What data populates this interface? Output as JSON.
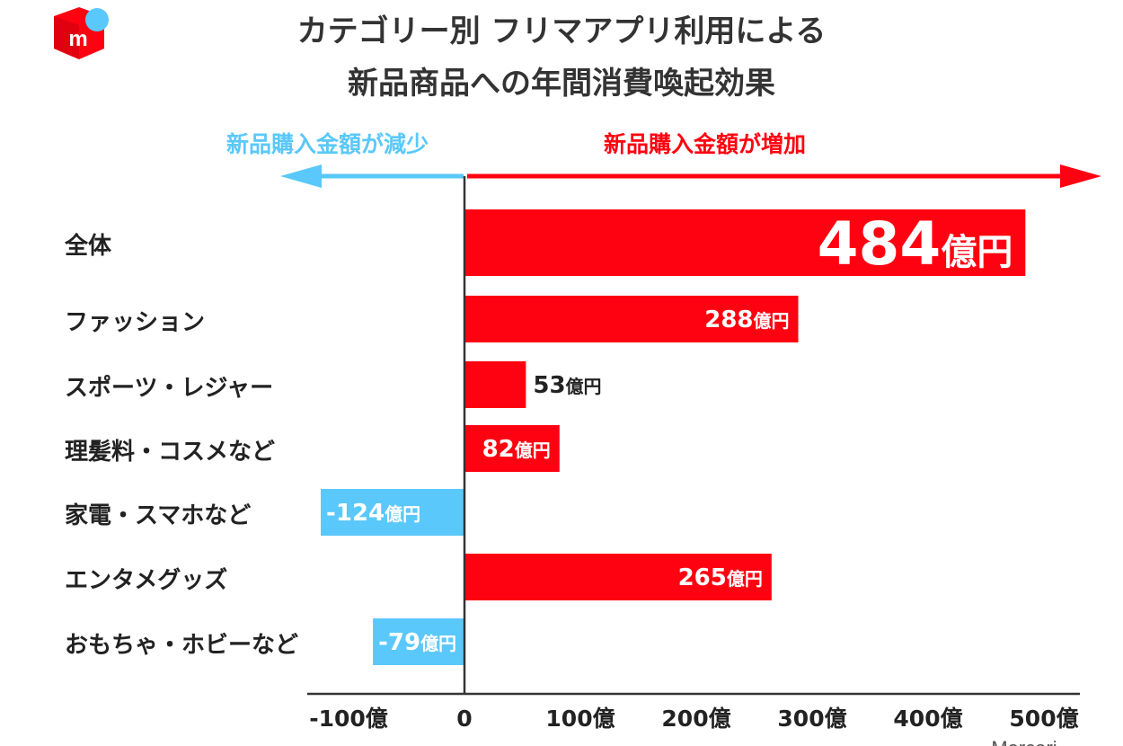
{
  "title_lines": [
    "カテゴリー別 フリマアプリ利用による",
    "新品商品への年間消費喚起効果"
  ],
  "direction_labels": {
    "decrease": "新品購入金額が減少",
    "increase": "新品購入金額が増加"
  },
  "logo": {
    "icon": "mercari-logo-icon",
    "letter": "m"
  },
  "colors": {
    "positive": "#ff0211",
    "negative": "#5ac8fa",
    "axis": "#333333",
    "text": "#222222"
  },
  "chart_data": {
    "type": "bar",
    "orientation": "horizontal",
    "categories": [
      "全体",
      "ファッション",
      "スポーツ・レジャー",
      "理髪料・コスメなど",
      "家電・スマホなど",
      "エンタメグッズ",
      "おもちゃ・ホビーなど"
    ],
    "values": [
      484,
      288,
      53,
      82,
      -124,
      265,
      -79
    ],
    "unit": "億円",
    "value_labels": [
      "484",
      "288",
      "53",
      "82",
      "-124",
      "265",
      "-79"
    ],
    "xlim": [
      -135,
      530
    ],
    "xticks": [
      -100,
      0,
      100,
      200,
      300,
      400,
      500
    ],
    "xtick_labels": [
      "-100億",
      "0",
      "100億",
      "200億",
      "300億",
      "400億",
      "500億"
    ],
    "grid": false,
    "legend": "none"
  },
  "footer_partial": "Mercari"
}
